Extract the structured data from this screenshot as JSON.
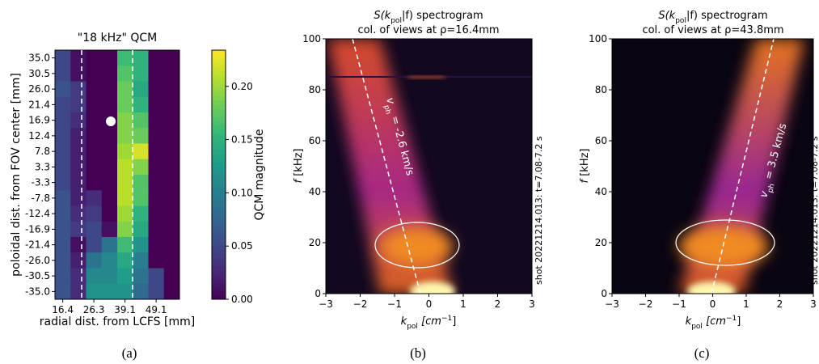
{
  "panel_labels": [
    "(a)",
    "(b)",
    "(c)"
  ],
  "chart_data": [
    {
      "type": "heatmap",
      "title": "\"18 kHz\" QCM",
      "xlabel": "radial dist. from LCFS  [mm]",
      "ylabel": "poloidal dist. from FOV center [mm]",
      "x_categories": [
        "16.4",
        null,
        "26.3",
        null,
        "39.1",
        null,
        "49.1",
        null
      ],
      "y_categories": [
        "35.0",
        "30.5",
        "26.0",
        "21.4",
        "16.9",
        "12.4",
        "7.8",
        "3.3",
        "-3.3",
        "-7.8",
        "-12.4",
        "-16.9",
        "-21.4",
        "-26.0",
        "-30.5",
        "-35.0"
      ],
      "values": [
        [
          0.05,
          0.01,
          0,
          0,
          0.16,
          0.15,
          0,
          0
        ],
        [
          0.05,
          0.01,
          0,
          0,
          0.17,
          0.15,
          0,
          0
        ],
        [
          0.06,
          0.04,
          0,
          0,
          0.18,
          0.14,
          0,
          0
        ],
        [
          0.05,
          0.04,
          0,
          0,
          0.18,
          0.15,
          0,
          0
        ],
        [
          0.05,
          0.03,
          0,
          0,
          0.19,
          0.17,
          0,
          0
        ],
        [
          0.05,
          0.02,
          0,
          0,
          0.19,
          0.18,
          0,
          0
        ],
        [
          0.05,
          0.02,
          0,
          0,
          0.2,
          0.22,
          0,
          0
        ],
        [
          0.05,
          0.02,
          0,
          0,
          0.21,
          0.19,
          0,
          0
        ],
        [
          0.05,
          0.02,
          0,
          0,
          0.21,
          0.17,
          0,
          0
        ],
        [
          0.06,
          0.02,
          0.03,
          0,
          0.21,
          0.17,
          0,
          0
        ],
        [
          0.06,
          0.03,
          0.04,
          0,
          0.2,
          0.15,
          0,
          0
        ],
        [
          0.06,
          0.04,
          0.05,
          0.01,
          0.19,
          0.14,
          0,
          0
        ],
        [
          0.06,
          0.01,
          0.05,
          0.09,
          0.16,
          0.12,
          0,
          0
        ],
        [
          0.06,
          0.02,
          0.09,
          0.11,
          0.14,
          0.1,
          0,
          0
        ],
        [
          0.06,
          0.03,
          0.11,
          0.11,
          0.13,
          0.09,
          0.05,
          0
        ],
        [
          0.06,
          0.03,
          0.12,
          0.12,
          0.12,
          0.08,
          0.05,
          0
        ]
      ],
      "colormap": "viridis",
      "colorbar_label": "QCM magnitude",
      "clim": [
        0,
        0.234
      ],
      "cticks": [
        {
          "value": 0,
          "label": "0.00"
        },
        {
          "value": 0.05,
          "label": "0.05"
        },
        {
          "value": 0.1,
          "label": "0.10"
        },
        {
          "value": 0.15,
          "label": "0.15"
        },
        {
          "value": 0.2,
          "label": "0.20"
        }
      ]
    },
    {
      "type": "spectrogram",
      "title": [
        "S(k",
        "pol",
        "|f) spectrogram"
      ],
      "subtitle": "col. of views at ρ=16.4mm",
      "xlabel": [
        "k",
        "pol",
        " [cm",
        "−1",
        "]"
      ],
      "ylabel": [
        "f",
        " [kHz]"
      ],
      "xlim": [
        -3,
        3
      ],
      "xticks": [
        {
          "value": -3,
          "label": "−3"
        },
        {
          "value": -2,
          "label": "−2"
        },
        {
          "value": -1,
          "label": "−1"
        },
        0,
        1,
        2,
        3
      ],
      "ylim": [
        0,
        100
      ],
      "yticks": [
        0,
        20,
        40,
        60,
        80,
        100
      ],
      "velocity_label": [
        "v",
        "ph",
        " = -2.6 km/s"
      ],
      "shot_label": "shot 20221214.013: t=7.08-7.2 s"
    },
    {
      "type": "spectrogram",
      "title": [
        "S(k",
        "pol",
        "|f) spectrogram"
      ],
      "subtitle": "col. of views at ρ=43.8mm",
      "xlabel": [
        "k",
        "pol",
        " [cm",
        "−1",
        "]"
      ],
      "ylabel": [
        "f",
        " [kHz]"
      ],
      "xlim": [
        -3,
        3
      ],
      "xticks": [
        {
          "value": -3,
          "label": "−3"
        },
        {
          "value": -2,
          "label": "−2"
        },
        {
          "value": -1,
          "label": "−1"
        },
        0,
        1,
        2,
        3
      ],
      "ylim": [
        0,
        100
      ],
      "yticks": [
        0,
        20,
        40,
        60,
        80,
        100
      ],
      "velocity_label": [
        "v",
        "ph",
        " = 3.5 km/s"
      ],
      "shot_label": "shot 20221214.013: t=7.08-7.2 s"
    }
  ]
}
